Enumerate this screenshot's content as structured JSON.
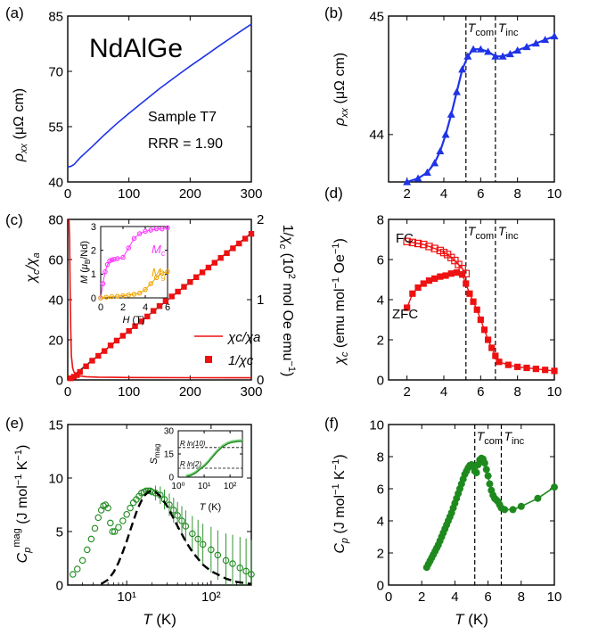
{
  "figure": {
    "colors": {
      "blue": "#1f33e6",
      "red": "#ee1111",
      "green": "#1e8a1e",
      "magenta": "#ff33ff",
      "orange": "#f0a500"
    }
  },
  "chart_data": [
    {
      "id": "a",
      "panel_label": "(a)",
      "type": "line",
      "title": "NdAlGe",
      "annotations": [
        "Sample T7",
        "RRR = 1.90"
      ],
      "xlabel": "",
      "ylabel": "ρxx (μΩ cm)",
      "xlim": [
        0,
        300
      ],
      "ylim": [
        40,
        85
      ],
      "xticks": [
        0,
        100,
        200,
        300
      ],
      "yticks": [
        40,
        55,
        70,
        85
      ],
      "series": [
        {
          "color": "blue",
          "x": [
            0,
            5,
            10,
            20,
            40,
            60,
            80,
            100,
            120,
            150,
            180,
            200,
            220,
            250,
            280,
            300
          ],
          "y": [
            44.1,
            44.2,
            44.7,
            46.5,
            49.6,
            52.8,
            55.8,
            58.6,
            61.3,
            65.3,
            69.0,
            71.4,
            73.7,
            77.2,
            80.6,
            82.8
          ]
        }
      ]
    },
    {
      "id": "b",
      "panel_label": "(b)",
      "type": "line",
      "xlabel": "",
      "ylabel": "ρxx (μΩ cm)",
      "xlim": [
        1,
        10
      ],
      "ylim": [
        43.6,
        45.0
      ],
      "xticks": [
        2,
        4,
        6,
        8,
        10
      ],
      "yticks": [
        44,
        45
      ],
      "vlines": [
        5.2,
        6.8
      ],
      "vline_labels": [
        "Tcom",
        "Tinc"
      ],
      "series": [
        {
          "color": "blue",
          "marker": "triangle",
          "x": [
            2.0,
            2.6,
            3.1,
            3.5,
            3.8,
            4.1,
            4.4,
            4.7,
            5.0,
            5.3,
            5.6,
            6.0,
            6.4,
            6.8,
            7.2,
            7.6,
            8.0,
            8.5,
            9.0,
            9.5,
            10.0
          ],
          "y": [
            43.6,
            43.63,
            43.68,
            43.76,
            43.86,
            44.0,
            44.17,
            44.36,
            44.55,
            44.66,
            44.72,
            44.72,
            44.7,
            44.66,
            44.66,
            44.68,
            44.71,
            44.74,
            44.77,
            44.8,
            44.83
          ]
        }
      ]
    },
    {
      "id": "c",
      "panel_label": "(c)",
      "type": "line",
      "xlabel": "",
      "ylabel": "χc/χa",
      "ylabel_right": "1/χc (10² mol Oe emu⁻¹)",
      "xlim": [
        0,
        300
      ],
      "ylim": [
        0,
        80
      ],
      "ylim_right": [
        0,
        2
      ],
      "xticks": [
        0,
        100,
        200,
        300
      ],
      "yticks": [
        0,
        20,
        40,
        60,
        80
      ],
      "yticks_right": [
        0,
        1,
        2
      ],
      "legend": [
        "χc/χa",
        "1/χc"
      ],
      "legend_position": "lower-right",
      "series": [
        {
          "name": "χc/χa",
          "color": "red",
          "x": [
            2,
            3,
            4,
            5,
            6,
            8,
            10,
            15,
            20,
            30,
            50,
            100,
            200,
            300
          ],
          "y": [
            80,
            70,
            45,
            25,
            12,
            6,
            4,
            2.5,
            2,
            1.6,
            1.4,
            1.2,
            1.1,
            1.05
          ]
        },
        {
          "name": "1/χc",
          "color": "red",
          "marker": "square",
          "axis": "right",
          "x": [
            5,
            10,
            15,
            20,
            30,
            40,
            50,
            60,
            70,
            80,
            90,
            100,
            110,
            120,
            130,
            140,
            150,
            160,
            170,
            180,
            190,
            200,
            210,
            220,
            230,
            240,
            250,
            260,
            270,
            280,
            290,
            300
          ],
          "y": [
            0.02,
            0.04,
            0.06,
            0.1,
            0.17,
            0.24,
            0.3,
            0.36,
            0.43,
            0.49,
            0.55,
            0.61,
            0.67,
            0.73,
            0.79,
            0.86,
            0.92,
            0.98,
            1.04,
            1.1,
            1.16,
            1.22,
            1.28,
            1.34,
            1.4,
            1.46,
            1.52,
            1.58,
            1.64,
            1.7,
            1.76,
            1.82
          ]
        }
      ],
      "inset": {
        "type": "scatter",
        "xlabel": "H (T)",
        "ylabel": "M (μB/Nd)",
        "xlim": [
          0,
          6
        ],
        "ylim": [
          0,
          3
        ],
        "xticks": [
          0,
          2,
          4,
          6
        ],
        "yticks": [
          0,
          1,
          2,
          3
        ],
        "series": [
          {
            "name": "Mc",
            "color": "magenta",
            "x": [
              0,
              0.2,
              0.4,
              0.6,
              0.8,
              1.0,
              1.2,
              1.5,
              2.0,
              2.5,
              3.0,
              3.5,
              4.0,
              4.5,
              5.0,
              5.5,
              6.0
            ],
            "y": [
              0,
              0.6,
              1.1,
              1.4,
              1.55,
              1.6,
              1.62,
              1.65,
              1.7,
              2.1,
              2.5,
              2.7,
              2.8,
              2.85,
              2.9,
              2.9,
              2.95
            ]
          },
          {
            "name": "Mg",
            "color": "orange",
            "x": [
              0,
              0.5,
              1.0,
              1.5,
              2.0,
              2.5,
              3.0,
              3.5,
              4.0,
              4.5,
              5.0,
              5.5,
              6.0
            ],
            "y": [
              0,
              0.03,
              0.05,
              0.07,
              0.09,
              0.12,
              0.15,
              0.2,
              0.35,
              0.6,
              0.85,
              1.05,
              1.1
            ]
          }
        ]
      }
    },
    {
      "id": "d",
      "panel_label": "(d)",
      "type": "line",
      "xlabel": "",
      "ylabel": "χc (emu mol⁻¹ Oe⁻¹)",
      "xlim": [
        1,
        10
      ],
      "ylim": [
        0,
        8
      ],
      "xticks": [
        2,
        4,
        6,
        8,
        10
      ],
      "yticks": [
        0,
        2,
        4,
        6,
        8
      ],
      "vlines": [
        5.2,
        6.8
      ],
      "vline_labels": [
        "Tcom",
        "Tinc"
      ],
      "series": [
        {
          "name": "FC",
          "color": "red",
          "marker": "open-square",
          "x": [
            2.0,
            2.3,
            2.6,
            2.9,
            3.2,
            3.5,
            3.8,
            4.0,
            4.2,
            4.4,
            4.6,
            4.8,
            5.0,
            5.2
          ],
          "y": [
            6.9,
            6.85,
            6.8,
            6.75,
            6.65,
            6.55,
            6.45,
            6.35,
            6.25,
            6.1,
            5.95,
            5.75,
            5.55,
            5.3
          ]
        },
        {
          "name": "ZFC",
          "color": "red",
          "marker": "square",
          "x": [
            2.0,
            2.3,
            2.6,
            2.9,
            3.2,
            3.5,
            3.8,
            4.1,
            4.4,
            4.7,
            5.0,
            5.2,
            5.4,
            5.6,
            5.8,
            6.0,
            6.2,
            6.4,
            6.6,
            6.8,
            7.0,
            7.5,
            8.0,
            8.5,
            9.0,
            9.5,
            10.0
          ],
          "y": [
            3.6,
            4.3,
            4.6,
            4.8,
            4.95,
            5.05,
            5.15,
            5.2,
            5.3,
            5.35,
            5.25,
            4.8,
            4.3,
            3.9,
            3.5,
            3.0,
            2.5,
            2.0,
            1.6,
            1.2,
            0.9,
            0.75,
            0.65,
            0.6,
            0.55,
            0.5,
            0.45
          ]
        }
      ]
    },
    {
      "id": "e",
      "panel_label": "(e)",
      "type": "scatter",
      "xlabel": "T (K)",
      "ylabel": "Cpmag (J mol⁻¹ K⁻¹)",
      "xscale": "log",
      "xlim": [
        2,
        300
      ],
      "ylim": [
        0,
        15
      ],
      "xticks": [
        10,
        100
      ],
      "xtick_labels": [
        "10¹",
        "10²"
      ],
      "yticks": [
        0,
        5,
        10,
        15
      ],
      "series": [
        {
          "color": "green",
          "marker": "open-circle",
          "x": [
            2.3,
            2.6,
            3.0,
            3.4,
            3.8,
            4.2,
            4.6,
            5.0,
            5.3,
            5.6,
            6.0,
            6.4,
            6.8,
            7.2,
            8,
            9,
            10,
            11,
            12,
            13,
            14,
            15,
            16,
            17,
            18,
            19,
            20,
            22,
            25,
            28,
            32,
            36,
            40,
            45,
            50,
            60,
            70,
            80,
            100,
            120,
            150,
            180,
            220,
            260,
            300
          ],
          "y": [
            1.0,
            1.5,
            2.3,
            3.3,
            4.3,
            5.3,
            6.3,
            7.0,
            7.4,
            7.5,
            7.2,
            5.8,
            5.0,
            5.0,
            5.4,
            6.0,
            6.6,
            7.2,
            7.7,
            8.0,
            8.3,
            8.6,
            8.7,
            8.8,
            8.8,
            8.8,
            8.7,
            8.6,
            8.4,
            8.0,
            7.5,
            7.0,
            6.5,
            6.0,
            5.5,
            4.8,
            4.3,
            3.8,
            3.3,
            2.8,
            2.3,
            2.0,
            1.6,
            1.3,
            1.0
          ]
        },
        {
          "color": "black",
          "line": "dashed",
          "x": [
            5,
            6,
            7,
            8,
            9,
            10,
            11,
            12,
            13,
            14,
            15,
            16,
            18,
            20,
            22,
            25,
            30,
            35,
            40,
            50,
            60,
            80,
            100,
            150,
            200,
            300
          ],
          "y": [
            0.1,
            0.5,
            1.2,
            2.1,
            3.1,
            4.1,
            5.1,
            6.0,
            6.8,
            7.4,
            7.9,
            8.3,
            8.7,
            8.8,
            8.7,
            8.3,
            7.4,
            6.4,
            5.5,
            4.1,
            3.1,
            1.9,
            1.3,
            0.6,
            0.3,
            0.1
          ]
        }
      ],
      "inset": {
        "type": "line",
        "xlabel": "T (K)",
        "ylabel": "Smag",
        "xscale": "log",
        "xlim": [
          1,
          300
        ],
        "ylim": [
          0,
          30
        ],
        "xticks": [
          1,
          10,
          100
        ],
        "xtick_labels": [
          "10⁰",
          "10¹",
          "10²"
        ],
        "yticks": [
          0,
          15,
          30
        ],
        "hlines": [
          {
            "y": 19.14,
            "label": "R ln(10)"
          },
          {
            "y": 5.76,
            "label": "R ln(2)"
          }
        ],
        "series": [
          {
            "color": "green",
            "x": [
              2,
              3,
              4,
              5,
              6,
              8,
              10,
              15,
              20,
              30,
              50,
              80,
              120,
              200,
              300
            ],
            "y": [
              0.3,
              1.0,
              2.0,
              3.0,
              4.2,
              5.8,
              7.0,
              10.0,
              12.5,
              16.0,
              19.5,
              21.5,
              22.5,
              23.0,
              23.2
            ]
          }
        ]
      }
    },
    {
      "id": "f",
      "panel_label": "(f)",
      "type": "line",
      "xlabel": "T (K)",
      "ylabel": "Cp (J mol⁻¹ K⁻¹)",
      "xlim": [
        0,
        10
      ],
      "ylim": [
        0,
        10
      ],
      "xticks": [
        0,
        2,
        4,
        6,
        8,
        10
      ],
      "yticks": [
        0,
        2,
        4,
        6,
        8,
        10
      ],
      "vlines": [
        5.2,
        6.8
      ],
      "vline_labels": [
        "Tcom",
        "Tinc"
      ],
      "series": [
        {
          "color": "green",
          "marker": "circle",
          "x": [
            2.3,
            2.4,
            2.5,
            2.6,
            2.7,
            2.8,
            2.9,
            3.0,
            3.1,
            3.2,
            3.3,
            3.4,
            3.5,
            3.6,
            3.7,
            3.8,
            3.9,
            4.0,
            4.1,
            4.2,
            4.3,
            4.4,
            4.5,
            4.6,
            4.7,
            4.8,
            4.9,
            5.0,
            5.1,
            5.2,
            5.3,
            5.4,
            5.5,
            5.6,
            5.7,
            5.8,
            5.9,
            6.0,
            6.1,
            6.2,
            6.3,
            6.4,
            6.5,
            6.6,
            6.7,
            6.8,
            7.0,
            7.5,
            8.0,
            9.0,
            10.0
          ],
          "y": [
            1.1,
            1.3,
            1.5,
            1.7,
            1.9,
            2.1,
            2.3,
            2.5,
            2.75,
            3.0,
            3.25,
            3.5,
            3.75,
            4.0,
            4.25,
            4.5,
            4.8,
            5.1,
            5.4,
            5.7,
            6.0,
            6.3,
            6.6,
            6.9,
            7.1,
            7.3,
            7.45,
            7.5,
            7.4,
            7.1,
            7.0,
            7.5,
            7.8,
            7.9,
            7.85,
            7.6,
            7.2,
            6.8,
            6.3,
            5.9,
            5.6,
            5.4,
            5.3,
            5.2,
            5.0,
            4.8,
            4.7,
            4.7,
            4.9,
            5.4,
            6.1
          ]
        }
      ]
    }
  ]
}
